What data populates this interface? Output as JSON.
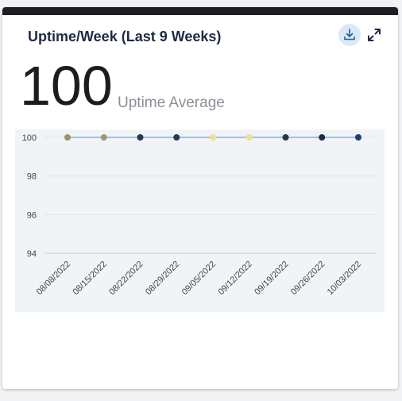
{
  "card": {
    "title": "Uptime/Week (Last 9 Weeks)",
    "kpi_value": "100",
    "kpi_label": "Uptime Average",
    "download_icon": "download-icon",
    "expand_icon": "expand-icon"
  },
  "colors": {
    "accent_bg": "#dbe8f6",
    "accent": "#3a6ea5",
    "line": "#7aa0c8",
    "plot_bg": "#f1f4f7"
  },
  "chart_data": {
    "type": "line",
    "categories": [
      "08/08/2022",
      "08/15/2022",
      "08/22/2022",
      "08/29/2022",
      "09/05/2022",
      "09/12/2022",
      "09/19/2022",
      "09/26/2022",
      "10/03/2022"
    ],
    "series": [
      {
        "values": [
          100,
          100,
          100,
          100,
          100,
          100,
          100,
          100,
          100
        ]
      }
    ],
    "point_colors": [
      "#9a9468",
      "#a09a72",
      "#2a3550",
      "#23395e",
      "#f3dd8f",
      "#f3dd8f",
      "#263a44",
      "#1e2a4a",
      "#1d3f78"
    ],
    "ylim": [
      94,
      100
    ],
    "yticks": [
      94,
      96,
      98,
      100
    ],
    "grid": true,
    "legend": "none"
  }
}
